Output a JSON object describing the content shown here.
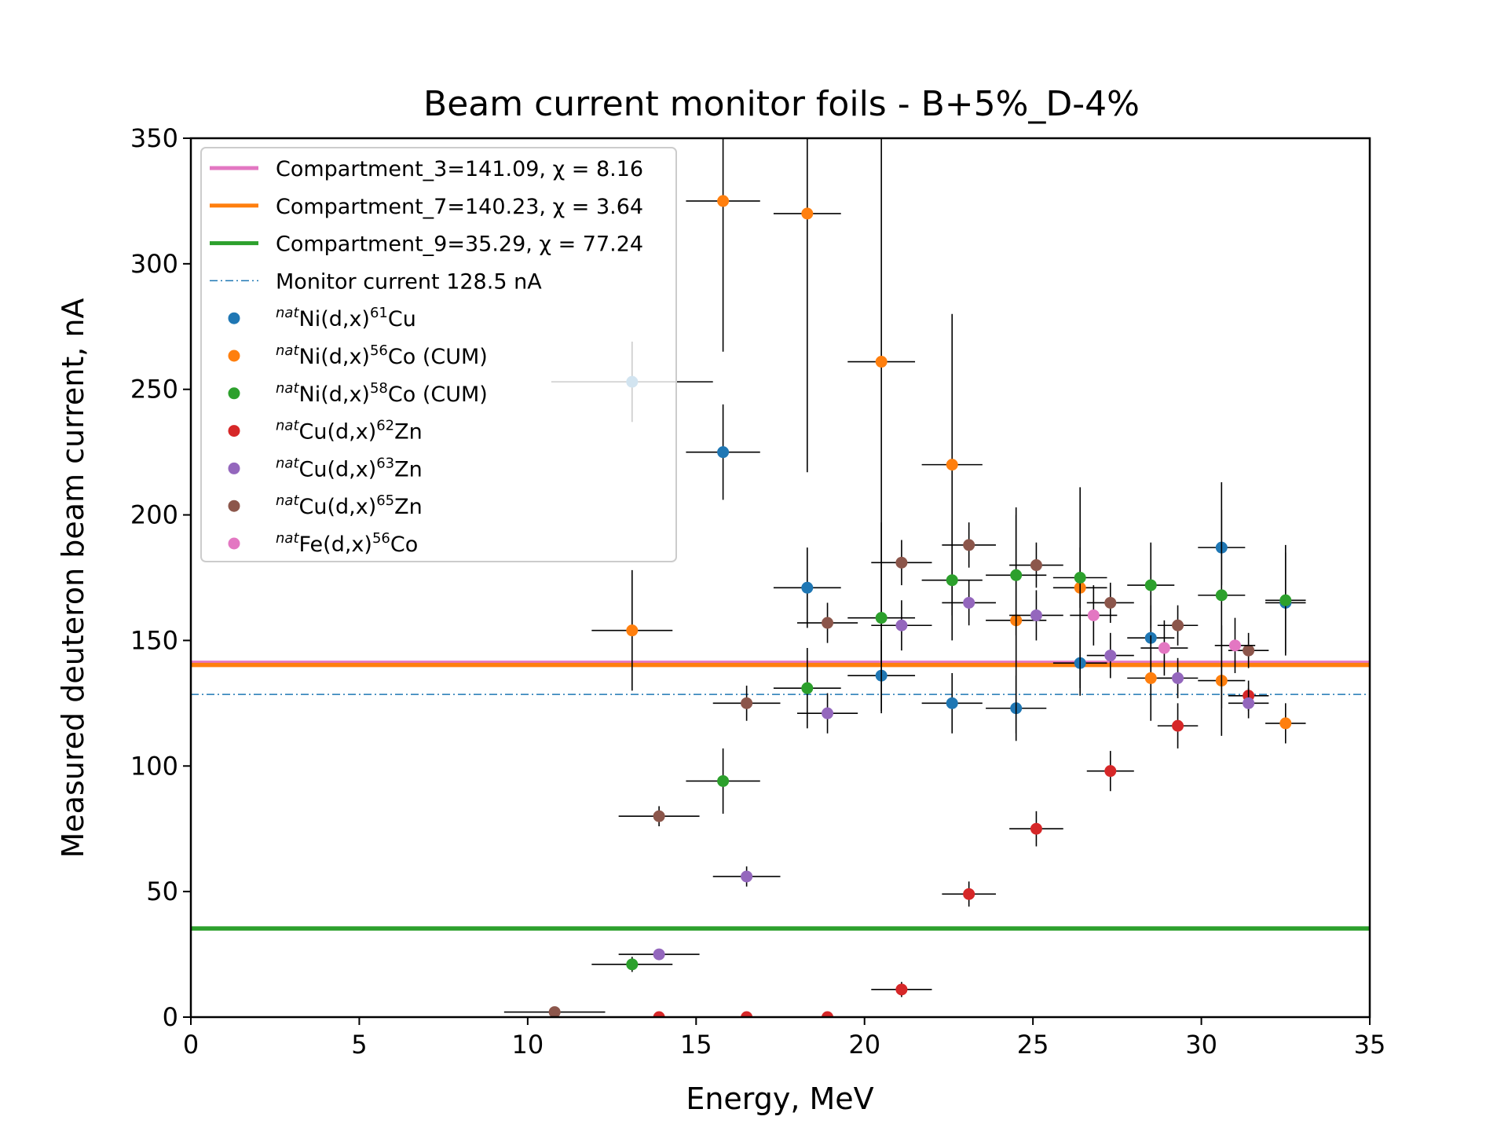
{
  "chart_data": {
    "type": "scatter",
    "title": "Beam current monitor foils - B+5%_D-4%",
    "xlabel": "Energy, MeV",
    "ylabel": "Measured deuteron beam current, nA",
    "xlim": [
      0,
      35
    ],
    "ylim": [
      0,
      350
    ],
    "xticks": [
      0,
      5,
      10,
      15,
      20,
      25,
      30,
      35
    ],
    "yticks": [
      0,
      50,
      100,
      150,
      200,
      250,
      300,
      350
    ],
    "grid": false,
    "legend_position": "top-left",
    "lines": [
      {
        "label": "Compartment_3=141.09, χ = 8.16",
        "y": 141.09,
        "color": "#e377c2",
        "style": "solid"
      },
      {
        "label": "Compartment_7=140.23, χ = 3.64",
        "y": 140.23,
        "color": "#ff7f0e",
        "style": "solid"
      },
      {
        "label": "Compartment_9=35.29, χ = 77.24",
        "y": 35.29,
        "color": "#2ca02c",
        "style": "solid"
      },
      {
        "label": "Monitor current 128.5 nA",
        "y": 128.5,
        "color": "#1f77b4",
        "style": "dashdot"
      }
    ],
    "series": [
      {
        "name": "natNi(d,x)61Cu",
        "sup1": "nat",
        "base1": "Ni(d,x)",
        "sup2": "61",
        "base2": "Cu",
        "color": "#1f77b4",
        "points": [
          [
            13.1,
            253,
            2.4,
            16
          ],
          [
            15.8,
            225,
            1.1,
            19
          ],
          [
            18.3,
            171,
            1,
            16
          ],
          [
            20.5,
            136,
            1,
            14
          ],
          [
            22.6,
            125,
            0.9,
            12
          ],
          [
            24.5,
            123,
            0.9,
            13
          ],
          [
            26.4,
            141,
            0.8,
            13
          ],
          [
            28.5,
            151,
            0.7,
            13
          ],
          [
            30.6,
            187,
            0.7,
            15
          ],
          [
            32.5,
            165,
            0.6,
            20
          ]
        ]
      },
      {
        "name": "natNi(d,x)56Co (CUM)",
        "sup1": "nat",
        "base1": "Ni(d,x)",
        "sup2": "56",
        "base2": "Co (CUM)",
        "color": "#ff7f0e",
        "points": [
          [
            13.1,
            154,
            1.2,
            24
          ],
          [
            15.8,
            325,
            1.1,
            60
          ],
          [
            18.3,
            320,
            1,
            103
          ],
          [
            20.5,
            261,
            1,
            120
          ],
          [
            22.6,
            220,
            0.9,
            60
          ],
          [
            24.5,
            158,
            0.9,
            45
          ],
          [
            26.4,
            171,
            0.8,
            40
          ],
          [
            28.5,
            135,
            0.7,
            17
          ],
          [
            30.6,
            134,
            0.7,
            22
          ],
          [
            32.5,
            117,
            0.6,
            8
          ]
        ]
      },
      {
        "name": "natNi(d,x)58Co (CUM)",
        "sup1": "nat",
        "base1": "Ni(d,x)",
        "sup2": "58",
        "base2": "Co (CUM)",
        "color": "#2ca02c",
        "points": [
          [
            13.1,
            21,
            1.2,
            3
          ],
          [
            15.8,
            94,
            1.1,
            13
          ],
          [
            18.3,
            131,
            1,
            16
          ],
          [
            20.5,
            159,
            1,
            38
          ],
          [
            22.6,
            174,
            0.9,
            24
          ],
          [
            24.5,
            176,
            0.9,
            24
          ],
          [
            26.4,
            175,
            0.8,
            12
          ],
          [
            28.5,
            172,
            0.7,
            17
          ],
          [
            30.6,
            168,
            0.7,
            45
          ],
          [
            32.5,
            166,
            0.6,
            22
          ]
        ]
      },
      {
        "name": "natCu(d,x)62Zn",
        "sup1": "nat",
        "base1": "Cu(d,x)",
        "sup2": "62",
        "base2": "Zn",
        "color": "#d62728",
        "points": [
          [
            13.9,
            0,
            0,
            0
          ],
          [
            16.5,
            0,
            0,
            0
          ],
          [
            18.9,
            0,
            0,
            0
          ],
          [
            21.1,
            11,
            0.9,
            3
          ],
          [
            23.1,
            49,
            0.8,
            5
          ],
          [
            25.1,
            75,
            0.8,
            7
          ],
          [
            27.3,
            98,
            0.7,
            8
          ],
          [
            29.3,
            116,
            0.6,
            9
          ],
          [
            31.4,
            128,
            0.6,
            6
          ]
        ]
      },
      {
        "name": "natCu(d,x)63Zn",
        "sup1": "nat",
        "base1": "Cu(d,x)",
        "sup2": "63",
        "base2": "Zn",
        "color": "#9467bd",
        "points": [
          [
            13.9,
            25,
            1.2,
            2
          ],
          [
            16.5,
            56,
            1,
            4
          ],
          [
            18.9,
            121,
            0.9,
            8
          ],
          [
            21.1,
            156,
            0.9,
            10
          ],
          [
            23.1,
            165,
            0.8,
            9
          ],
          [
            25.1,
            160,
            0.8,
            10
          ],
          [
            27.3,
            144,
            0.7,
            9
          ],
          [
            29.3,
            135,
            0.6,
            8
          ],
          [
            31.4,
            125,
            0.6,
            6
          ]
        ]
      },
      {
        "name": "natCu(d,x)65Zn",
        "sup1": "nat",
        "base1": "Cu(d,x)",
        "sup2": "65",
        "base2": "Zn",
        "color": "#8c564b",
        "points": [
          [
            10.8,
            2,
            1.5,
            1
          ],
          [
            13.9,
            80,
            1.2,
            4
          ],
          [
            16.5,
            125,
            1,
            7
          ],
          [
            18.9,
            157,
            0.9,
            8
          ],
          [
            21.1,
            181,
            0.9,
            9
          ],
          [
            23.1,
            188,
            0.8,
            9
          ],
          [
            25.1,
            180,
            0.8,
            9
          ],
          [
            27.3,
            165,
            0.7,
            8
          ],
          [
            29.3,
            156,
            0.6,
            8
          ],
          [
            31.4,
            146,
            0.6,
            7
          ]
        ]
      },
      {
        "name": "natFe(d,x)56Co",
        "sup1": "nat",
        "base1": "Fe(d,x)",
        "sup2": "56",
        "base2": "Co",
        "color": "#e377c2",
        "points": [
          [
            26.8,
            160,
            0.7,
            12
          ],
          [
            28.9,
            147,
            0.7,
            11
          ],
          [
            31,
            148,
            0.6,
            11
          ]
        ]
      }
    ]
  }
}
